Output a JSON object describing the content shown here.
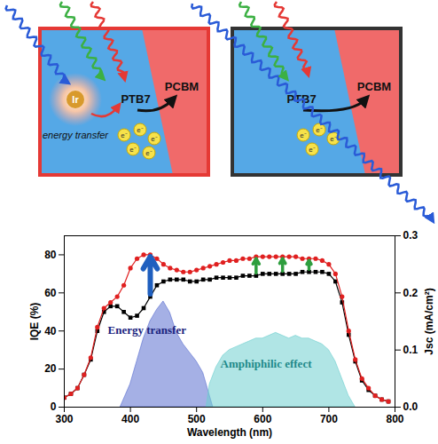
{
  "diagram": {
    "panels": [
      {
        "labels": {
          "dopant": "Ir",
          "process": "energy transfer",
          "donor": "PTB7",
          "acceptor": "PCBM"
        },
        "electrons": [
          "e⁻",
          "e⁻",
          "e⁻",
          "e⁻",
          "e⁻"
        ]
      },
      {
        "labels": {
          "donor": "PTB7",
          "acceptor": "PCBM"
        },
        "electrons": [
          "e⁻",
          "e⁻",
          "e⁻",
          "e⁻"
        ]
      }
    ]
  },
  "chart_data": {
    "type": "line",
    "xlabel": "Wavelength (nm)",
    "ylabel": "IQE (%)",
    "y2label": "Jsc (mA/cm²)",
    "xlim": [
      300,
      800
    ],
    "xticks": [
      300,
      400,
      500,
      600,
      700,
      800
    ],
    "ylim": [
      0,
      90
    ],
    "yticks": [
      0,
      20,
      40,
      60,
      80
    ],
    "y2lim": [
      0,
      0.3
    ],
    "y2ticks": [
      {
        "value": 0,
        "label": "0.0"
      },
      {
        "value": 0.1,
        "label": "0.1"
      },
      {
        "value": 0.2,
        "label": "0.2"
      },
      {
        "value": 0.3,
        "label": "0.3"
      }
    ],
    "series": [
      {
        "type": "line",
        "color": "#000000",
        "marker": "square",
        "line_style": "solid",
        "x": [
          300,
          310,
          320,
          330,
          340,
          350,
          360,
          370,
          380,
          390,
          400,
          410,
          420,
          430,
          440,
          450,
          460,
          470,
          480,
          490,
          500,
          510,
          520,
          530,
          540,
          550,
          560,
          570,
          580,
          590,
          600,
          610,
          620,
          630,
          640,
          650,
          660,
          670,
          680,
          690,
          700,
          710,
          720,
          730,
          740,
          750,
          760,
          770,
          780,
          790
        ],
        "values": [
          5,
          7,
          10,
          17,
          25,
          40,
          50,
          53,
          53,
          50,
          47,
          48,
          52,
          58,
          64,
          66,
          67,
          67,
          67,
          66,
          66,
          67,
          67,
          68,
          68,
          68,
          68,
          69,
          69,
          69,
          70,
          70,
          70,
          70,
          70,
          70,
          71,
          71,
          71,
          71,
          70,
          66,
          55,
          38,
          24,
          14,
          9,
          6,
          4,
          3
        ]
      },
      {
        "type": "line",
        "color": "#e02020",
        "marker": "circle",
        "line_style": "solid",
        "x": [
          300,
          310,
          320,
          330,
          340,
          350,
          360,
          370,
          380,
          390,
          400,
          410,
          420,
          430,
          440,
          450,
          460,
          470,
          480,
          490,
          500,
          510,
          520,
          530,
          540,
          550,
          560,
          570,
          580,
          590,
          600,
          610,
          620,
          630,
          640,
          650,
          660,
          670,
          680,
          690,
          700,
          710,
          720,
          730,
          740,
          750,
          760,
          770,
          780,
          790
        ],
        "values": [
          5,
          7,
          10,
          17,
          26,
          42,
          52,
          55,
          58,
          64,
          73,
          78,
          80,
          80,
          78,
          75,
          73,
          72,
          71,
          71,
          72,
          73,
          74,
          75,
          76,
          77,
          77,
          78,
          78,
          79,
          79,
          79,
          79,
          79,
          79,
          79,
          78,
          78,
          78,
          77,
          75,
          70,
          58,
          40,
          25,
          15,
          10,
          6,
          4,
          3
        ]
      },
      {
        "type": "area",
        "axis": "y2",
        "color": "#5b6fd0",
        "x": [
          385,
          400,
          410,
          420,
          430,
          440,
          450,
          460,
          470,
          480,
          490,
          500,
          510,
          520,
          525
        ],
        "values": [
          0,
          0.04,
          0.08,
          0.12,
          0.15,
          0.17,
          0.185,
          0.165,
          0.13,
          0.11,
          0.095,
          0.08,
          0.06,
          0.02,
          0
        ]
      },
      {
        "type": "area",
        "axis": "y2",
        "color": "#6fd0d0",
        "x": [
          515,
          520,
          530,
          540,
          550,
          560,
          570,
          580,
          590,
          600,
          610,
          620,
          630,
          640,
          650,
          660,
          670,
          680,
          690,
          700,
          710,
          720,
          730,
          740
        ],
        "values": [
          0,
          0.04,
          0.07,
          0.09,
          0.1,
          0.105,
          0.11,
          0.115,
          0.12,
          0.12,
          0.125,
          0.13,
          0.125,
          0.12,
          0.125,
          0.12,
          0.12,
          0.115,
          0.11,
          0.1,
          0.08,
          0.05,
          0.02,
          0
        ]
      }
    ],
    "annotations": [
      {
        "text": "Energy transfer",
        "x": 425,
        "y": 0.135,
        "axis": "y2",
        "color": "#1a237e"
      },
      {
        "text": "Amphiphilic effect",
        "x": 605,
        "y": 0.075,
        "axis": "y2",
        "color": "#1f8a8a"
      }
    ],
    "arrows": [
      {
        "x": 430,
        "color": "#1f5fbf"
      },
      {
        "x": 590,
        "color": "#2e9e3e"
      },
      {
        "x": 630,
        "color": "#2e9e3e"
      },
      {
        "x": 670,
        "color": "#2e9e3e"
      }
    ]
  }
}
